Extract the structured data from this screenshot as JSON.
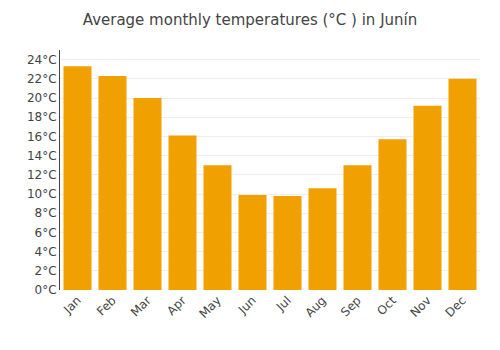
{
  "chart_data": {
    "type": "bar",
    "title": "Average monthly temperatures (°C ) in Junín",
    "categories": [
      "Jan",
      "Feb",
      "Mar",
      "Apr",
      "May",
      "Jun",
      "Jul",
      "Aug",
      "Sep",
      "Oct",
      "Nov",
      "Dec"
    ],
    "values": [
      23.3,
      22.3,
      20.0,
      16.1,
      13.0,
      9.9,
      9.8,
      10.6,
      13.0,
      15.7,
      19.2,
      22.0
    ],
    "color": "#F0A000",
    "ylim": [
      0,
      25
    ],
    "yticks": [
      {
        "value": 0,
        "label": "0°C"
      },
      {
        "value": 2,
        "label": "2°C"
      },
      {
        "value": 4,
        "label": "4°C"
      },
      {
        "value": 6,
        "label": "6°C"
      },
      {
        "value": 8,
        "label": "8°C"
      },
      {
        "value": 10,
        "label": "10°C"
      },
      {
        "value": 12,
        "label": "12°C"
      },
      {
        "value": 14,
        "label": "14°C"
      },
      {
        "value": 16,
        "label": "16°C"
      },
      {
        "value": 18,
        "label": "18°C"
      },
      {
        "value": 20,
        "label": "20°C"
      },
      {
        "value": 22,
        "label": "22°C"
      },
      {
        "value": 24,
        "label": "24°C"
      }
    ],
    "grid": true
  }
}
